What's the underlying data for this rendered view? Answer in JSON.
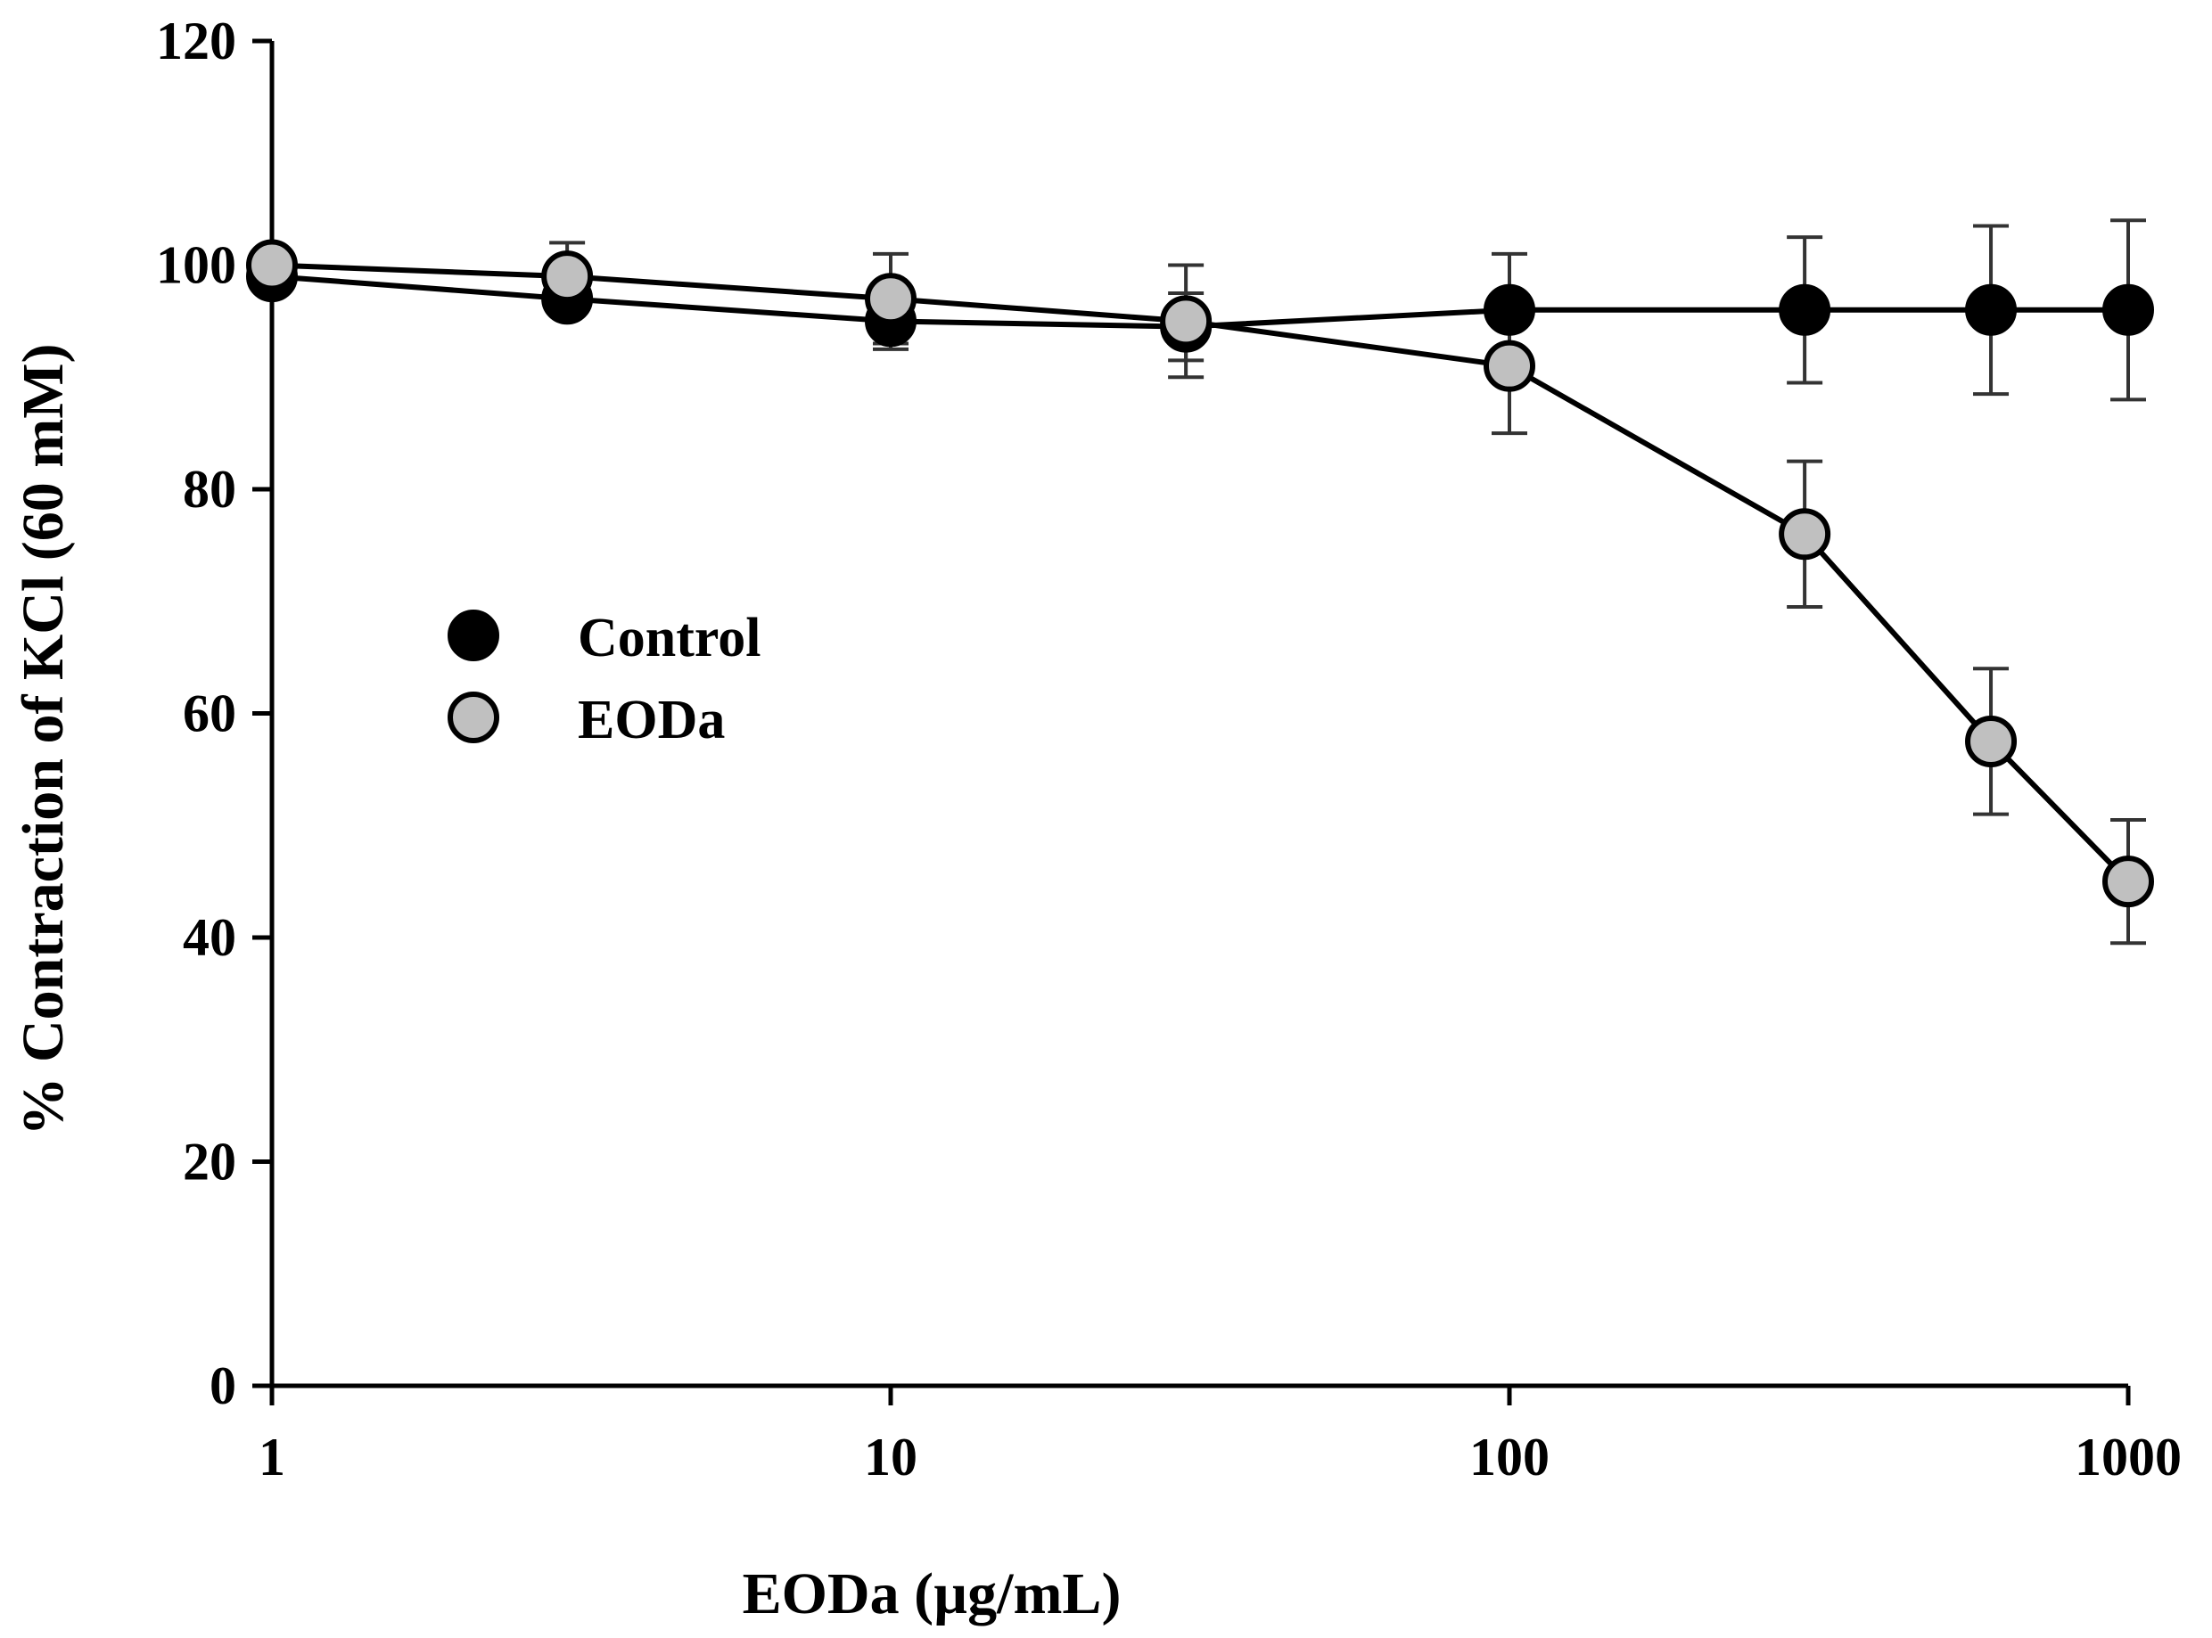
{
  "chart_data": {
    "type": "line",
    "title": "",
    "xlabel": "EODa (µg/mL)",
    "ylabel": "% Contraction of KCl (60 mM)",
    "xscale": "log",
    "xlim": [
      1,
      1000
    ],
    "ylim": [
      0,
      120
    ],
    "xticks": [
      1,
      10,
      100,
      1000
    ],
    "xtick_labels": [
      "1",
      "10",
      "100",
      "1000"
    ],
    "yticks": [
      0,
      20,
      40,
      60,
      80,
      100,
      120
    ],
    "ytick_labels": [
      "0",
      "20",
      "40",
      "60",
      "80",
      "100",
      "120"
    ],
    "grid": false,
    "legend_position": "left-middle",
    "series": [
      {
        "name": "Control",
        "marker_color": "#000000",
        "x": [
          1,
          3,
          10,
          30,
          100,
          300,
          600,
          1000
        ],
        "y": [
          99,
          97,
          95,
          94.5,
          96,
          96,
          96,
          96
        ],
        "err": [
          1,
          1.5,
          2.5,
          3,
          5,
          6.5,
          7.5,
          8
        ]
      },
      {
        "name": "EODa",
        "marker_color": "#c0c0c0",
        "x": [
          1,
          3,
          10,
          30,
          100,
          300,
          600,
          1000
        ],
        "y": [
          100,
          99,
          97,
          95,
          91,
          76,
          57.5,
          45
        ],
        "err": [
          1,
          3,
          4,
          5,
          6,
          6.5,
          6.5,
          5.5
        ]
      }
    ]
  }
}
